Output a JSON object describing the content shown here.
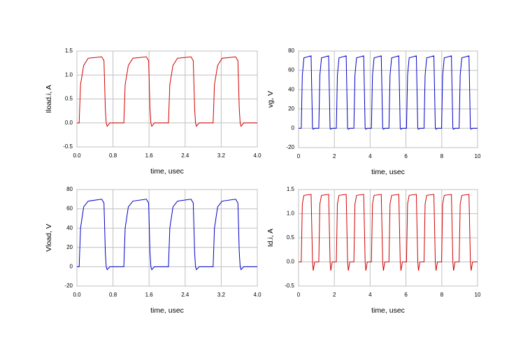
{
  "chart_data": [
    {
      "type": "line",
      "x_label": "time, usec",
      "y_label": "Iload.i, A",
      "xlim": [
        0,
        4
      ],
      "ylim": [
        -0.5,
        1.5
      ],
      "xticks": [
        {
          "value": 0,
          "label": "0.0"
        },
        0.8,
        1.6,
        2.4,
        3.2,
        {
          "value": 4,
          "label": "4.0"
        }
      ],
      "yticks": [
        -0.5,
        {
          "value": 0,
          "label": "0.0"
        },
        0.5,
        {
          "value": 1,
          "label": "1.0"
        },
        1.5
      ],
      "grid": true,
      "x": [
        0,
        0.05,
        0.08,
        0.15,
        0.25,
        0.55,
        0.6,
        0.63,
        0.65,
        0.67,
        0.73,
        1.04,
        1.07,
        1.14,
        1.24,
        1.54,
        1.59,
        1.62,
        1.64,
        1.66,
        1.72,
        2.03,
        2.06,
        2.13,
        2.23,
        2.53,
        2.58,
        2.61,
        2.63,
        2.65,
        2.71,
        3.02,
        3.05,
        3.12,
        3.22,
        3.52,
        3.57,
        3.6,
        3.62,
        3.64,
        3.7,
        4
      ],
      "series": [
        {
          "color": "#d40000",
          "values": [
            0,
            0,
            0.8,
            1.2,
            1.35,
            1.38,
            1.3,
            0.3,
            0,
            -0.07,
            0,
            0,
            0.8,
            1.2,
            1.35,
            1.38,
            1.3,
            0.3,
            0,
            -0.07,
            0,
            0,
            0.8,
            1.2,
            1.35,
            1.38,
            1.3,
            0.3,
            0,
            -0.07,
            0,
            0,
            0.8,
            1.2,
            1.35,
            1.38,
            1.3,
            0.3,
            0,
            -0.07,
            0,
            0
          ]
        }
      ]
    },
    {
      "type": "line",
      "x_label": "time, usec",
      "y_label": "vg, V",
      "xlim": [
        0,
        10
      ],
      "ylim": [
        -20,
        80
      ],
      "xticks": [
        0,
        2,
        4,
        6,
        8,
        10
      ],
      "yticks": [
        -20,
        0,
        20,
        40,
        60,
        80
      ],
      "grid": true,
      "x": [
        0,
        0.15,
        0.21,
        0.3,
        0.7,
        0.78,
        0.82,
        0.9,
        1.13,
        1.19,
        1.28,
        1.68,
        1.76,
        1.8,
        1.88,
        2.11,
        2.17,
        2.26,
        2.66,
        2.74,
        2.78,
        2.86,
        3.09,
        3.15,
        3.24,
        3.64,
        3.72,
        3.76,
        3.84,
        4.07,
        4.13,
        4.22,
        4.62,
        4.7,
        4.74,
        4.82,
        5.05,
        5.11,
        5.2,
        5.6,
        5.68,
        5.72,
        5.8,
        6.03,
        6.09,
        6.18,
        6.58,
        6.66,
        6.7,
        6.78,
        7.01,
        7.07,
        7.16,
        7.56,
        7.64,
        7.68,
        7.76,
        7.99,
        8.05,
        8.14,
        8.54,
        8.62,
        8.66,
        8.74,
        8.97,
        9.03,
        9.12,
        9.52,
        9.6,
        9.64,
        9.72,
        10
      ],
      "series": [
        {
          "color": "#0000c8",
          "values": [
            0,
            0,
            55,
            73,
            75,
            0,
            -1,
            0,
            0,
            55,
            73,
            75,
            0,
            -1,
            0,
            0,
            55,
            73,
            75,
            0,
            -1,
            0,
            0,
            55,
            73,
            75,
            0,
            -1,
            0,
            0,
            55,
            73,
            75,
            0,
            -1,
            0,
            0,
            55,
            73,
            75,
            0,
            -1,
            0,
            0,
            55,
            73,
            75,
            0,
            -1,
            0,
            0,
            55,
            73,
            75,
            0,
            -1,
            0,
            0,
            55,
            73,
            75,
            0,
            -1,
            0,
            0,
            55,
            73,
            75,
            0,
            -1,
            0,
            0
          ]
        }
      ]
    },
    {
      "type": "line",
      "x_label": "time, usec",
      "y_label": "Vload, V",
      "xlim": [
        0,
        4
      ],
      "ylim": [
        -20,
        80
      ],
      "xticks": [
        {
          "value": 0,
          "label": "0.0"
        },
        0.8,
        1.6,
        2.4,
        3.2,
        {
          "value": 4,
          "label": "4.0"
        }
      ],
      "yticks": [
        -20,
        0,
        20,
        40,
        60,
        80
      ],
      "grid": true,
      "x": [
        0,
        0.05,
        0.08,
        0.15,
        0.25,
        0.55,
        0.6,
        0.63,
        0.65,
        0.67,
        0.73,
        1.04,
        1.07,
        1.14,
        1.24,
        1.54,
        1.59,
        1.62,
        1.64,
        1.66,
        1.72,
        2.03,
        2.06,
        2.13,
        2.23,
        2.53,
        2.58,
        2.61,
        2.63,
        2.65,
        2.71,
        3.02,
        3.05,
        3.12,
        3.22,
        3.52,
        3.57,
        3.6,
        3.62,
        3.64,
        3.7,
        4
      ],
      "series": [
        {
          "color": "#0000c8",
          "values": [
            0,
            0,
            40,
            62,
            68,
            70,
            66,
            15,
            0,
            -3,
            0,
            0,
            40,
            62,
            68,
            70,
            66,
            15,
            0,
            -3,
            0,
            0,
            40,
            62,
            68,
            70,
            66,
            15,
            0,
            -3,
            0,
            0,
            40,
            62,
            68,
            70,
            66,
            15,
            0,
            -3,
            0,
            0
          ]
        }
      ]
    },
    {
      "type": "line",
      "x_label": "time, usec",
      "y_label": "Id.i, A",
      "xlim": [
        0,
        10
      ],
      "ylim": [
        -0.5,
        1.5
      ],
      "xticks": [
        0,
        2,
        4,
        6,
        8,
        10
      ],
      "yticks": [
        -0.5,
        {
          "value": 0,
          "label": "0.0"
        },
        0.5,
        {
          "value": 1,
          "label": "1.0"
        },
        1.5
      ],
      "grid": true,
      "x": [
        0,
        0.15,
        0.21,
        0.3,
        0.7,
        0.78,
        0.82,
        0.9,
        1.13,
        1.19,
        1.28,
        1.68,
        1.76,
        1.8,
        1.88,
        2.11,
        2.17,
        2.26,
        2.66,
        2.74,
        2.78,
        2.86,
        3.09,
        3.15,
        3.24,
        3.64,
        3.72,
        3.76,
        3.84,
        4.07,
        4.13,
        4.22,
        4.62,
        4.7,
        4.74,
        4.82,
        5.05,
        5.11,
        5.2,
        5.6,
        5.68,
        5.72,
        5.8,
        6.03,
        6.09,
        6.18,
        6.58,
        6.66,
        6.7,
        6.78,
        7.01,
        7.07,
        7.16,
        7.56,
        7.64,
        7.68,
        7.76,
        7.99,
        8.05,
        8.14,
        8.54,
        8.62,
        8.66,
        8.74,
        8.97,
        9.03,
        9.12,
        9.52,
        9.6,
        9.64,
        9.72,
        10
      ],
      "series": [
        {
          "color": "#d40000",
          "values": [
            0,
            0,
            1.2,
            1.38,
            1.4,
            0,
            -0.18,
            0,
            0,
            1.2,
            1.38,
            1.4,
            0,
            -0.18,
            0,
            0,
            1.2,
            1.38,
            1.4,
            0,
            -0.18,
            0,
            0,
            1.2,
            1.38,
            1.4,
            0,
            -0.18,
            0,
            0,
            1.2,
            1.38,
            1.4,
            0,
            -0.18,
            0,
            0,
            1.2,
            1.38,
            1.4,
            0,
            -0.18,
            0,
            0,
            1.2,
            1.38,
            1.4,
            0,
            -0.18,
            0,
            0,
            1.2,
            1.38,
            1.4,
            0,
            -0.18,
            0,
            0,
            1.2,
            1.38,
            1.4,
            0,
            -0.18,
            0,
            0,
            1.2,
            1.38,
            1.4,
            0,
            -0.18,
            0,
            0
          ]
        }
      ]
    }
  ]
}
